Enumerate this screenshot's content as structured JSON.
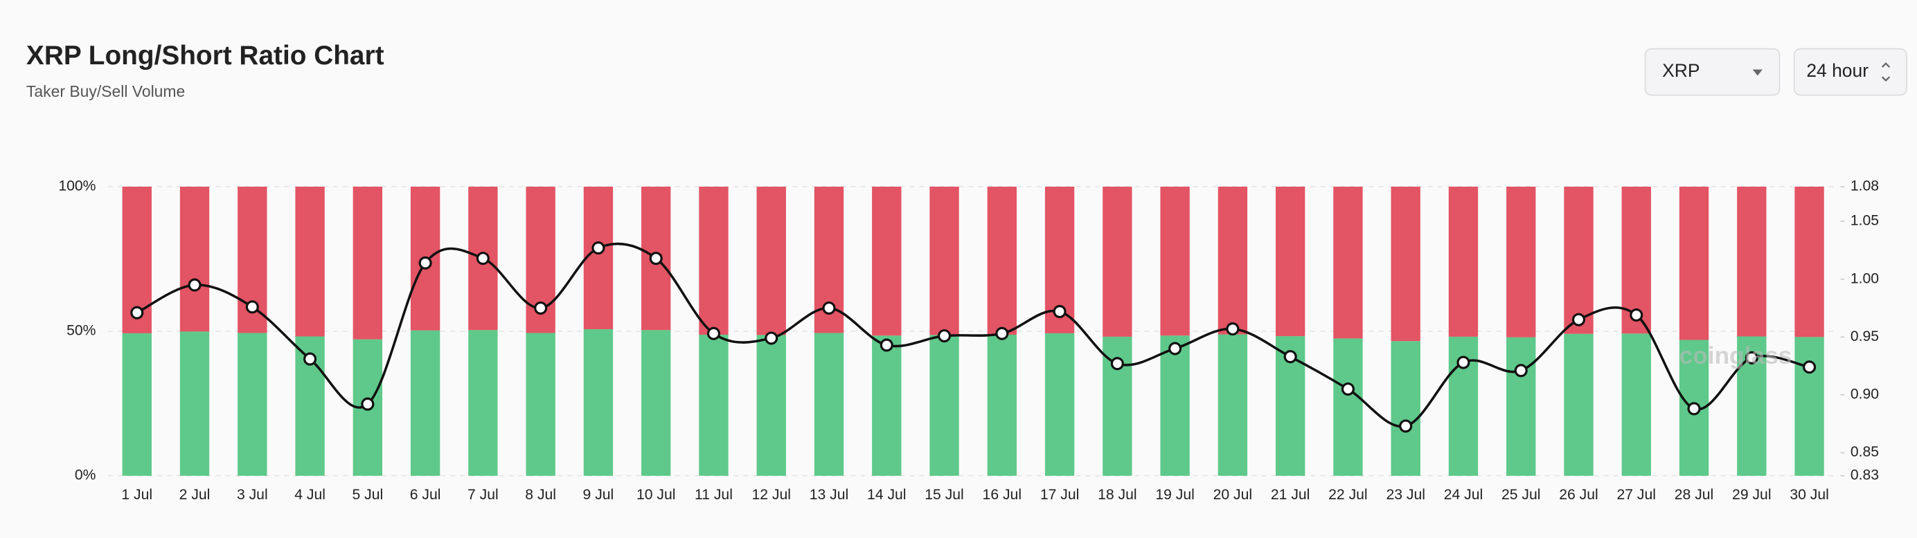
{
  "chart_data": {
    "type": "bar",
    "stacked": true,
    "title": "XRP Long/Short Ratio Chart",
    "subtitle": "Taker Buy/Sell Volume",
    "categories": [
      "1 Jul",
      "2 Jul",
      "3 Jul",
      "4 Jul",
      "5 Jul",
      "6 Jul",
      "7 Jul",
      "8 Jul",
      "9 Jul",
      "10 Jul",
      "11 Jul",
      "12 Jul",
      "13 Jul",
      "14 Jul",
      "15 Jul",
      "16 Jul",
      "17 Jul",
      "18 Jul",
      "19 Jul",
      "20 Jul",
      "21 Jul",
      "22 Jul",
      "23 Jul",
      "24 Jul",
      "25 Jul",
      "26 Jul",
      "27 Jul",
      "28 Jul",
      "29 Jul",
      "30 Jul"
    ],
    "series": [
      {
        "color": "#5ec98a",
        "values": [
          49.3,
          49.9,
          49.4,
          48.2,
          47.2,
          50.3,
          50.4,
          49.4,
          50.7,
          50.4,
          48.8,
          48.7,
          49.4,
          48.5,
          48.7,
          48.8,
          49.3,
          48.1,
          48.5,
          48.9,
          48.3,
          47.5,
          46.6,
          48.1,
          47.9,
          49.1,
          49.2,
          47.0,
          48.2,
          48.0
        ]
      },
      {
        "color": "#e35464",
        "values": [
          50.7,
          50.1,
          50.6,
          51.8,
          52.8,
          49.7,
          49.6,
          50.6,
          49.3,
          49.6,
          51.2,
          51.3,
          50.6,
          51.5,
          51.3,
          51.2,
          50.7,
          51.9,
          51.5,
          51.1,
          51.7,
          52.5,
          53.4,
          51.9,
          52.1,
          50.9,
          50.8,
          53.0,
          51.8,
          52.0
        ]
      },
      {
        "type": "line",
        "axis": "y2",
        "color": "#111111",
        "values": [
          0.971,
          0.995,
          0.976,
          0.931,
          0.892,
          1.014,
          1.018,
          0.975,
          1.027,
          1.018,
          0.953,
          0.949,
          0.975,
          0.943,
          0.951,
          0.953,
          0.972,
          0.927,
          0.94,
          0.957,
          0.933,
          0.905,
          0.873,
          0.928,
          0.921,
          0.965,
          0.969,
          0.888,
          0.932,
          0.924
        ]
      }
    ],
    "ylim": [
      0,
      100
    ],
    "yticks": [
      {
        "value": 0,
        "label": "0%"
      },
      {
        "value": 50,
        "label": "50%"
      },
      {
        "value": 100,
        "label": "100%"
      }
    ],
    "y2lim": [
      0.83,
      1.08
    ],
    "y2ticks": [
      0.83,
      0.85,
      {
        "value": 0.9,
        "label": "0.90"
      },
      0.95,
      {
        "value": 1,
        "label": "1.00"
      },
      1.05,
      1.08
    ],
    "grid": true
  },
  "controls": [
    "XRP",
    "24 hour"
  ],
  "watermark": "coinglass"
}
